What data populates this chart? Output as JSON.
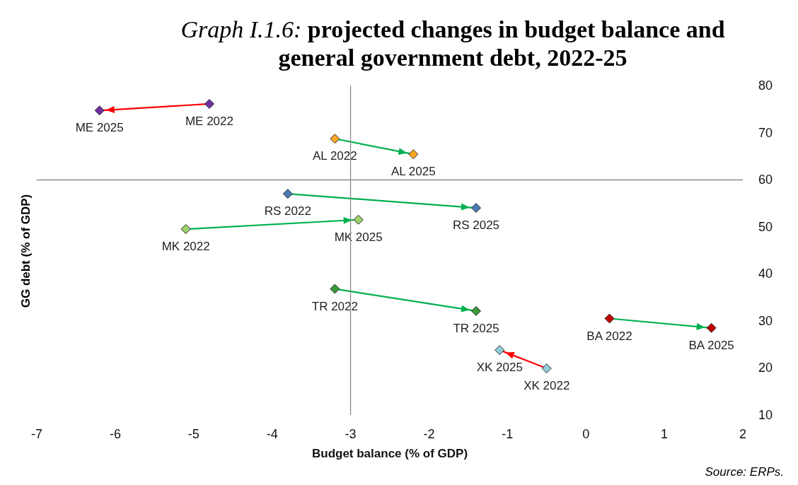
{
  "chart_data": {
    "type": "line",
    "title": "Graph I.1.6: projected changes in budget balance and general government debt, 2022-25",
    "xlabel": "Budget balance (% of GDP)",
    "ylabel": "GG debt (% of GDP)",
    "xlim": [
      -7,
      2
    ],
    "xticks": [
      -7,
      -6,
      -5,
      -4,
      -3,
      -2,
      -1,
      0,
      1,
      2
    ],
    "ylim": [
      10,
      80
    ],
    "yticks": [
      10,
      20,
      30,
      40,
      50,
      60,
      70,
      80
    ],
    "grid": false,
    "marker": "diamond",
    "line_style": "solid",
    "annotations": [
      "Source: ERPs."
    ],
    "ref_lines": [
      {
        "axis": "x",
        "value": -3,
        "label": null,
        "color": "#8c8c8c"
      },
      {
        "axis": "y",
        "value": 60,
        "label": null,
        "color": "#8c8c8c"
      }
    ],
    "series": [
      {
        "color": "#ff0000",
        "x": [
          -4.8,
          -6.2
        ],
        "values": [
          76.1,
          74.7
        ],
        "colors": [
          "#7030a0",
          "#7030a0"
        ],
        "value_labels": [
          "ME 2022",
          "ME 2025"
        ]
      },
      {
        "color": "#00b050",
        "x": [
          -3.2,
          -2.2
        ],
        "values": [
          68.7,
          65.4
        ],
        "colors": [
          "#ffa726",
          "#ffa726"
        ],
        "value_labels": [
          "AL 2022",
          "AL 2025"
        ]
      },
      {
        "color": "#00b050",
        "x": [
          -3.8,
          -1.4
        ],
        "values": [
          57.0,
          54.0
        ],
        "colors": [
          "#4a78b0",
          "#4a78b0"
        ],
        "value_labels": [
          "RS 2022",
          "RS 2025"
        ]
      },
      {
        "color": "#00b050",
        "x": [
          -5.1,
          -2.9
        ],
        "values": [
          49.5,
          51.5
        ],
        "colors": [
          "#9bd46a",
          "#9bd46a"
        ],
        "value_labels": [
          "MK 2022",
          "MK 2025"
        ]
      },
      {
        "color": "#00b050",
        "x": [
          -3.2,
          -1.4
        ],
        "values": [
          36.8,
          32.1
        ],
        "colors": [
          "#3a9a3a",
          "#3a9a3a"
        ],
        "value_labels": [
          "TR 2022",
          "TR 2025"
        ]
      },
      {
        "color": "#00b050",
        "x": [
          0.3,
          1.6
        ],
        "values": [
          30.5,
          28.5
        ],
        "colors": [
          "#c00000",
          "#c00000"
        ],
        "value_labels": [
          "BA 2022",
          "BA 2025"
        ]
      },
      {
        "color": "#ff0000",
        "x": [
          -0.5,
          -1.1
        ],
        "values": [
          19.9,
          23.8
        ],
        "colors": [
          "#92cddc",
          "#92cddc"
        ],
        "value_labels": [
          "XK 2022",
          "XK 2025"
        ]
      }
    ]
  }
}
